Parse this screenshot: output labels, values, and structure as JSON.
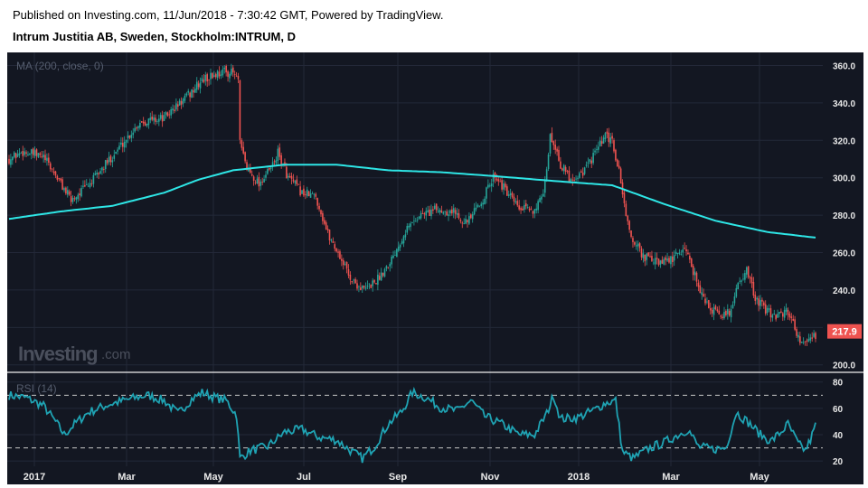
{
  "header": {
    "published": "Published on Investing.com, 11/Jun/2018 - 7:30:42 GMT, Powered by TradingView.",
    "symbol": "Intrum Justitia AB, Sweden, Stockholm:INTRUM, D"
  },
  "watermark": {
    "brand": "Investing",
    "suffix": ".com"
  },
  "colors": {
    "background": "#131722",
    "grid": "#232838",
    "up": "#26a69a",
    "down": "#ef5350",
    "ma": "#2ee6e6",
    "rsi": "#1fa3b3",
    "rsi_band": "#c8c8c8",
    "last_price_bg": "#ef5350"
  },
  "chart_data": [
    {
      "type": "candlestick",
      "study_label": "MA (200, close, 0)",
      "x_ticks": [
        "2017",
        "Mar",
        "May",
        "Jul",
        "Sep",
        "Nov",
        "2018",
        "Mar",
        "May"
      ],
      "y_ticks": [
        "200.0",
        "220.0",
        "240.0",
        "260.0",
        "280.0",
        "300.0",
        "320.0",
        "340.0",
        "360.0"
      ],
      "ylim": [
        196,
        367
      ],
      "last_price": "217.9",
      "price_path": [
        [
          0,
          310
        ],
        [
          8,
          314
        ],
        [
          20,
          311
        ],
        [
          28,
          300
        ],
        [
          36,
          288
        ],
        [
          48,
          298
        ],
        [
          62,
          314
        ],
        [
          76,
          330
        ],
        [
          90,
          332
        ],
        [
          104,
          344
        ],
        [
          112,
          352
        ],
        [
          124,
          357
        ],
        [
          130,
          356
        ],
        [
          133,
          352
        ],
        [
          134,
          318
        ],
        [
          138,
          305
        ],
        [
          145,
          297
        ],
        [
          152,
          305
        ],
        [
          156,
          313
        ],
        [
          162,
          300
        ],
        [
          170,
          292
        ],
        [
          178,
          290
        ],
        [
          185,
          270
        ],
        [
          192,
          258
        ],
        [
          199,
          245
        ],
        [
          206,
          240
        ],
        [
          214,
          246
        ],
        [
          222,
          257
        ],
        [
          230,
          272
        ],
        [
          238,
          280
        ],
        [
          248,
          283
        ],
        [
          258,
          282
        ],
        [
          266,
          276
        ],
        [
          274,
          287
        ],
        [
          282,
          302
        ],
        [
          288,
          293
        ],
        [
          296,
          283
        ],
        [
          304,
          283
        ],
        [
          310,
          289
        ],
        [
          314,
          322
        ],
        [
          317,
          317
        ],
        [
          320,
          307
        ],
        [
          326,
          299
        ],
        [
          334,
          304
        ],
        [
          340,
          313
        ],
        [
          346,
          322
        ],
        [
          350,
          319
        ],
        [
          354,
          303
        ],
        [
          360,
          270
        ],
        [
          368,
          258
        ],
        [
          378,
          254
        ],
        [
          386,
          257
        ],
        [
          392,
          263
        ],
        [
          398,
          248
        ],
        [
          404,
          233
        ],
        [
          412,
          226
        ],
        [
          418,
          228
        ],
        [
          424,
          246
        ],
        [
          428,
          250
        ],
        [
          433,
          236
        ],
        [
          440,
          228
        ],
        [
          448,
          226
        ],
        [
          452,
          229
        ],
        [
          460,
          211
        ],
        [
          465,
          213
        ],
        [
          468,
          216
        ]
      ],
      "ma_path": [
        [
          0,
          278
        ],
        [
          30,
          282
        ],
        [
          60,
          285
        ],
        [
          90,
          292
        ],
        [
          110,
          299
        ],
        [
          130,
          304
        ],
        [
          160,
          307
        ],
        [
          190,
          307
        ],
        [
          220,
          304
        ],
        [
          250,
          303
        ],
        [
          280,
          301
        ],
        [
          320,
          298
        ],
        [
          350,
          296
        ],
        [
          380,
          286
        ],
        [
          410,
          277
        ],
        [
          440,
          271
        ],
        [
          468,
          268
        ]
      ]
    },
    {
      "type": "line",
      "study_label": "RSI (14)",
      "y_ticks": [
        "20",
        "40",
        "60",
        "80"
      ],
      "ylim": [
        16,
        86
      ],
      "bands": [
        30,
        70
      ],
      "rsi_path": [
        [
          0,
          70
        ],
        [
          10,
          68
        ],
        [
          20,
          62
        ],
        [
          28,
          48
        ],
        [
          32,
          40
        ],
        [
          38,
          48
        ],
        [
          46,
          57
        ],
        [
          58,
          63
        ],
        [
          70,
          67
        ],
        [
          80,
          70
        ],
        [
          90,
          66
        ],
        [
          98,
          56
        ],
        [
          106,
          67
        ],
        [
          112,
          72
        ],
        [
          120,
          68
        ],
        [
          126,
          66
        ],
        [
          132,
          55
        ],
        [
          134,
          22
        ],
        [
          140,
          28
        ],
        [
          150,
          31
        ],
        [
          160,
          42
        ],
        [
          170,
          44
        ],
        [
          180,
          38
        ],
        [
          190,
          36
        ],
        [
          198,
          28
        ],
        [
          205,
          22
        ],
        [
          212,
          31
        ],
        [
          220,
          48
        ],
        [
          228,
          58
        ],
        [
          234,
          72
        ],
        [
          242,
          68
        ],
        [
          250,
          61
        ],
        [
          260,
          58
        ],
        [
          268,
          66
        ],
        [
          276,
          54
        ],
        [
          286,
          48
        ],
        [
          296,
          40
        ],
        [
          305,
          40
        ],
        [
          312,
          56
        ],
        [
          316,
          70
        ],
        [
          320,
          52
        ],
        [
          330,
          53
        ],
        [
          340,
          59
        ],
        [
          346,
          64
        ],
        [
          352,
          66
        ],
        [
          356,
          27
        ],
        [
          362,
          22
        ],
        [
          372,
          30
        ],
        [
          380,
          34
        ],
        [
          394,
          44
        ],
        [
          400,
          31
        ],
        [
          408,
          29
        ],
        [
          416,
          30
        ],
        [
          422,
          57
        ],
        [
          430,
          48
        ],
        [
          436,
          40
        ],
        [
          442,
          35
        ],
        [
          448,
          42
        ],
        [
          452,
          48
        ],
        [
          458,
          33
        ],
        [
          462,
          28
        ],
        [
          465,
          36
        ],
        [
          468,
          47
        ]
      ]
    }
  ]
}
